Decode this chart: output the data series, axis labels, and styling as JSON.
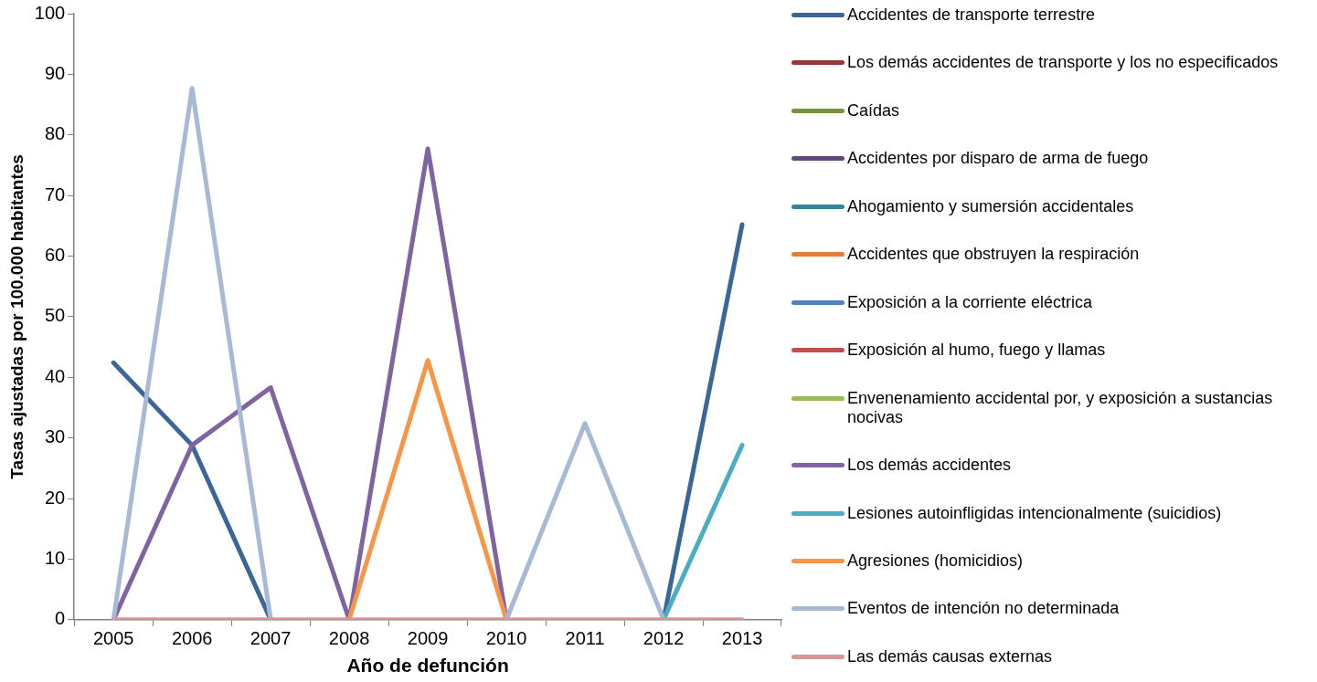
{
  "chart_data": {
    "type": "line",
    "xlabel": "Año de defunción",
    "ylabel": "Tasas ajustadas por 100.000 habitantes",
    "categories": [
      "2005",
      "2006",
      "2007",
      "2008",
      "2009",
      "2010",
      "2011",
      "2012",
      "2013"
    ],
    "ylim": [
      0,
      100
    ],
    "yticks": [
      0,
      10,
      20,
      30,
      40,
      50,
      60,
      70,
      80,
      90,
      100
    ],
    "grid": false,
    "legend": "right",
    "marker": "none",
    "line_style": "solid",
    "series": [
      {
        "name": "Accidentes de transporte terrestre",
        "color": "#3b6698",
        "values": [
          42.4,
          28.8,
          0,
          null,
          null,
          null,
          null,
          0,
          65.2
        ]
      },
      {
        "name": "Los demás accidentes de transporte y los no especificados",
        "color": "#953735",
        "values": [
          null,
          null,
          null,
          null,
          null,
          null,
          null,
          null,
          null
        ]
      },
      {
        "name": "Caídas",
        "color": "#77933c",
        "values": [
          null,
          null,
          null,
          null,
          null,
          null,
          null,
          null,
          null
        ]
      },
      {
        "name": "Accidentes por disparo de arma de fuego",
        "color": "#604a7b",
        "values": [
          null,
          null,
          null,
          null,
          null,
          null,
          null,
          null,
          null
        ]
      },
      {
        "name": "Ahogamiento y sumersión accidentales",
        "color": "#31859c",
        "values": [
          null,
          null,
          null,
          null,
          null,
          null,
          null,
          null,
          null
        ]
      },
      {
        "name": "Accidentes que obstruyen la respiración",
        "color": "#e47c3a",
        "values": [
          null,
          null,
          null,
          null,
          null,
          null,
          null,
          null,
          null
        ]
      },
      {
        "name": "Exposición a la corriente eléctrica",
        "color": "#4f81bd",
        "values": [
          null,
          null,
          null,
          null,
          null,
          null,
          null,
          null,
          null
        ]
      },
      {
        "name": "Exposición al humo, fuego y llamas",
        "color": "#c0504d",
        "values": [
          null,
          null,
          null,
          null,
          null,
          null,
          null,
          null,
          null
        ]
      },
      {
        "name": "Envenenamiento accidental por, y exposición a sustancias nocivas",
        "color": "#9bbb59",
        "values": [
          null,
          null,
          null,
          null,
          null,
          null,
          null,
          null,
          null
        ]
      },
      {
        "name": "Los demás accidentes",
        "color": "#8064a2",
        "values": [
          0,
          28.8,
          38.3,
          0,
          77.7,
          0,
          null,
          null,
          null
        ]
      },
      {
        "name": "Lesiones autoinfligidas intencionalmente (suicidios)",
        "color": "#4bacc6",
        "values": [
          null,
          null,
          null,
          null,
          null,
          null,
          null,
          0,
          28.8
        ]
      },
      {
        "name": "Agresiones (homicidios)",
        "color": "#f79646",
        "values": [
          null,
          null,
          null,
          0,
          42.8,
          0,
          null,
          null,
          null
        ]
      },
      {
        "name": "Eventos de intención no determinada",
        "color": "#a7b9d7",
        "values": [
          0,
          87.7,
          0,
          null,
          null,
          0,
          32.4,
          0,
          null
        ]
      },
      {
        "name": "Las demás causas externas",
        "color": "#d99795",
        "values": [
          0,
          0,
          0,
          0,
          0,
          0,
          0,
          0,
          0
        ]
      }
    ]
  }
}
